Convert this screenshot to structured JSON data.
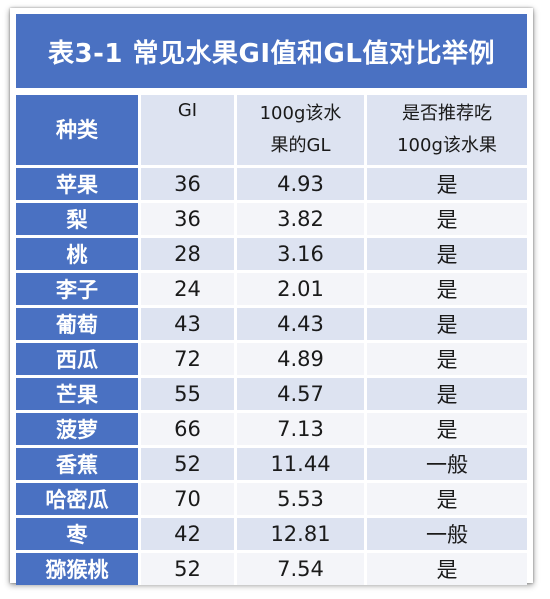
{
  "title": "表3-1 常见水果GI值和GL值对比举例",
  "headers": {
    "col1": "种类",
    "col2": "GI",
    "col3_line1": "100g该水",
    "col3_line2": "果的GL",
    "col4_line1": "是否推荐吃",
    "col4_line2": "100g该水果"
  },
  "rows": [
    {
      "name": "苹果",
      "gi": "36",
      "gl": "4.93",
      "rec": "是"
    },
    {
      "name": "梨",
      "gi": "36",
      "gl": "3.82",
      "rec": "是"
    },
    {
      "name": "桃",
      "gi": "28",
      "gl": "3.16",
      "rec": "是"
    },
    {
      "name": "李子",
      "gi": "24",
      "gl": "2.01",
      "rec": "是"
    },
    {
      "name": "葡萄",
      "gi": "43",
      "gl": "4.43",
      "rec": "是"
    },
    {
      "name": "西瓜",
      "gi": "72",
      "gl": "4.89",
      "rec": "是"
    },
    {
      "name": "芒果",
      "gi": "55",
      "gl": "4.57",
      "rec": "是"
    },
    {
      "name": "菠萝",
      "gi": "66",
      "gl": "7.13",
      "rec": "是"
    },
    {
      "name": "香蕉",
      "gi": "52",
      "gl": "11.44",
      "rec": "一般"
    },
    {
      "name": "哈密瓜",
      "gi": "70",
      "gl": "5.53",
      "rec": "是"
    },
    {
      "name": "枣",
      "gi": "42",
      "gl": "12.81",
      "rec": "一般"
    },
    {
      "name": "猕猴桃",
      "gi": "52",
      "gl": "7.54",
      "rec": "是"
    }
  ]
}
